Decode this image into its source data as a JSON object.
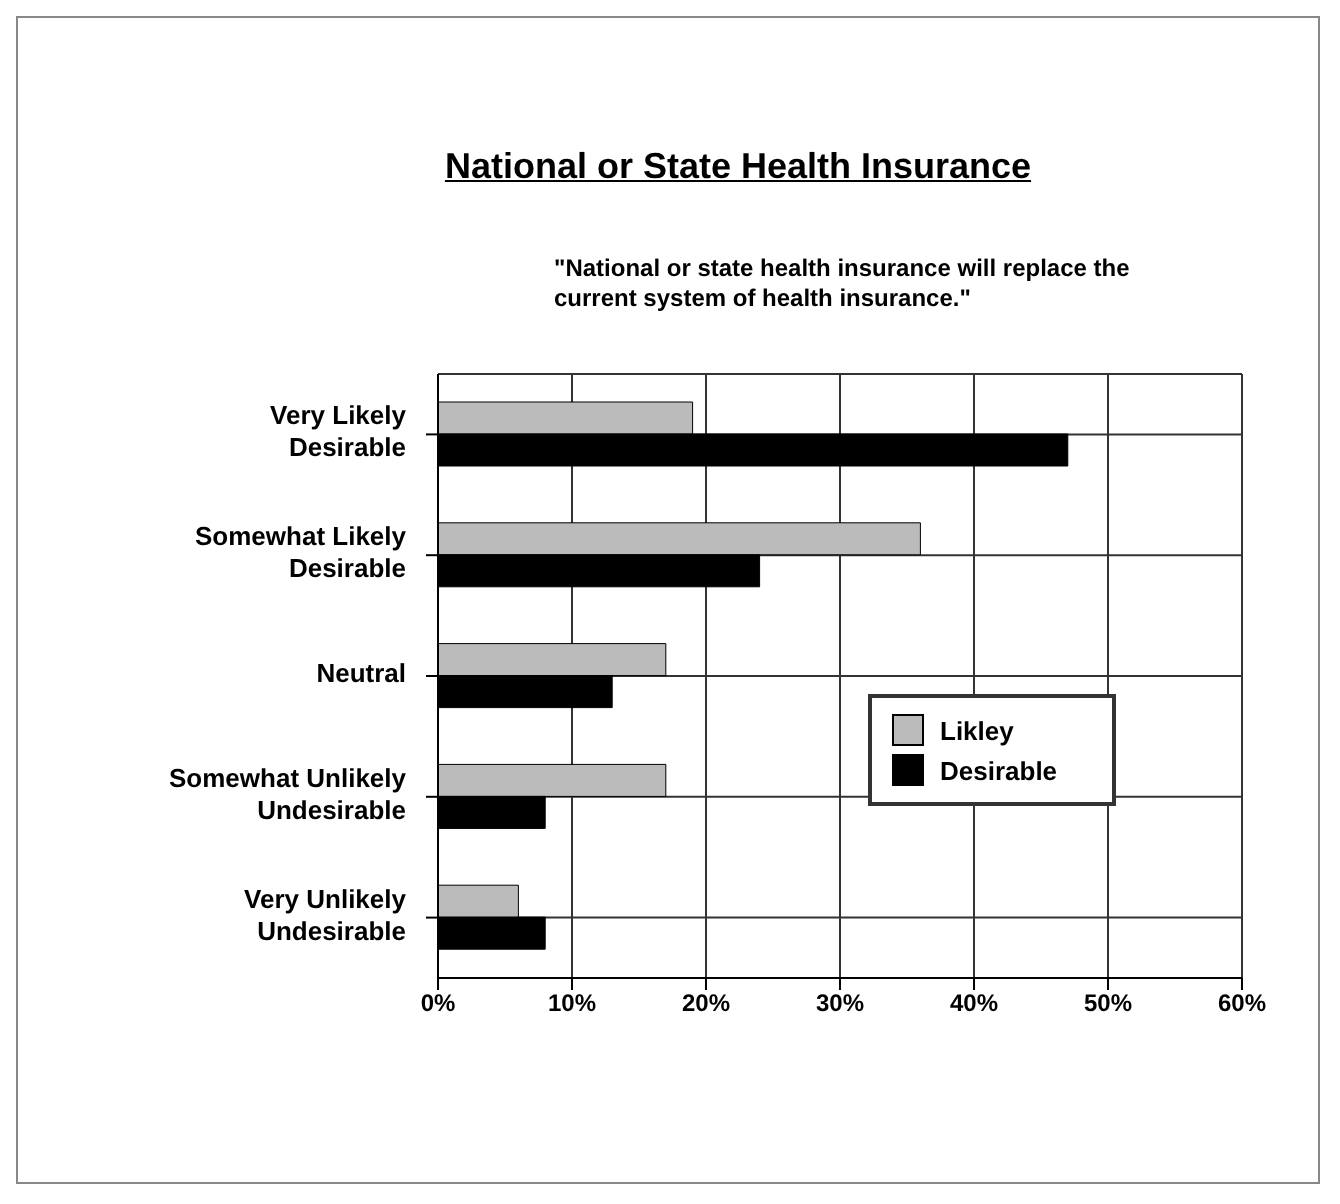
{
  "chart_data": {
    "type": "bar",
    "orientation": "horizontal",
    "title": "National or State Health Insurance",
    "subtitle": "\"National or state health insurance will replace the current system of health insurance.\"",
    "categories": [
      "Very Likely\nDesirable",
      "Somewhat Likely\nDesirable",
      "Neutral",
      "Somewhat Unlikely\nUndesirable",
      "Very Unlikely\nUndesirable"
    ],
    "series": [
      {
        "name": "Likley",
        "color": "#bbbbbb",
        "values": [
          19,
          36,
          17,
          17,
          6
        ]
      },
      {
        "name": "Desirable",
        "color": "#000000",
        "values": [
          47,
          24,
          13,
          8,
          8
        ]
      }
    ],
    "xlim": [
      0,
      60
    ],
    "xticks": [
      {
        "value": 0,
        "label": "0%"
      },
      {
        "value": 10,
        "label": "10%"
      },
      {
        "value": 20,
        "label": "20%"
      },
      {
        "value": 30,
        "label": "30%"
      },
      {
        "value": 40,
        "label": "40%"
      },
      {
        "value": 50,
        "label": "50%"
      },
      {
        "value": 60,
        "label": "60%"
      }
    ],
    "grid": true,
    "legend": "right"
  }
}
